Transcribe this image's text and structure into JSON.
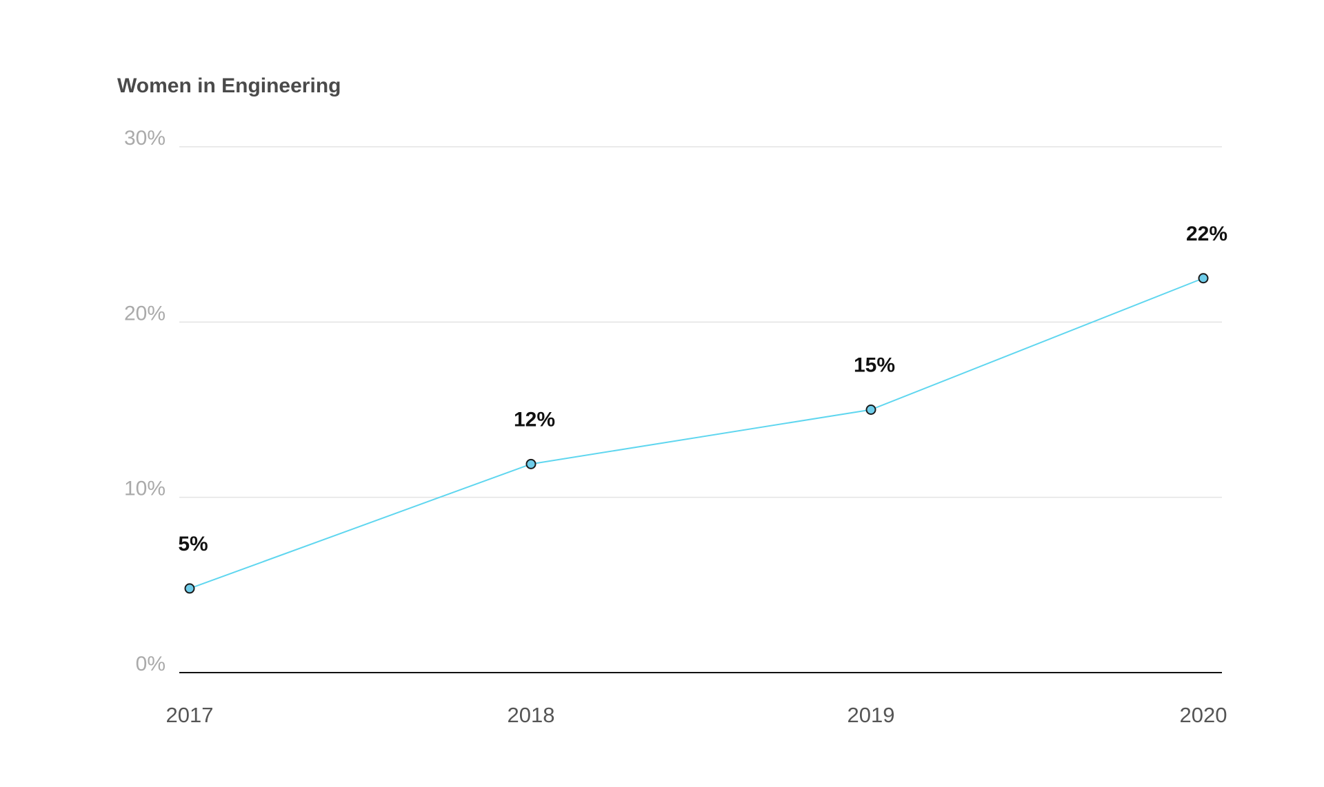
{
  "chart_data": {
    "type": "line",
    "title": "Women in Engineering",
    "categories": [
      "2017",
      "2018",
      "2019",
      "2020"
    ],
    "values": [
      4.8,
      11.9,
      15,
      22.5
    ],
    "data_labels": [
      "5%",
      "12%",
      "15%",
      "22%"
    ],
    "yticks": [
      {
        "value": 0,
        "label": "0%"
      },
      {
        "value": 10,
        "label": "10%"
      },
      {
        "value": 20,
        "label": "20%"
      },
      {
        "value": 30,
        "label": "30%"
      }
    ],
    "ylim": [
      0,
      30
    ],
    "grid": true,
    "colors": {
      "line": "#5fd6ef",
      "marker_fill": "#6fcdea",
      "marker_stroke": "#1a1a1a"
    }
  }
}
